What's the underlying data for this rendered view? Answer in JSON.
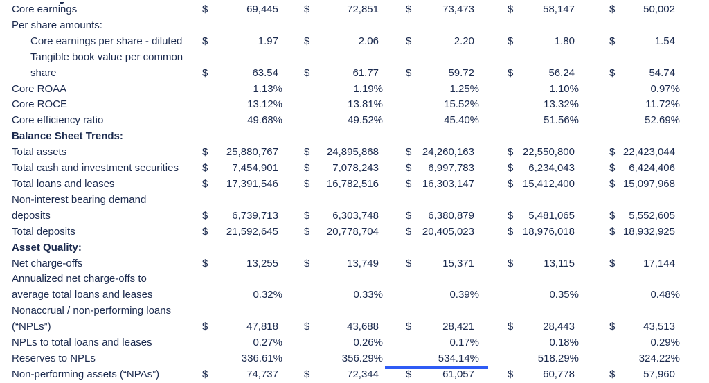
{
  "colors": {
    "text_navy": "#1b2a4e",
    "accent_blue_bar": "#2e5bf5"
  },
  "table": {
    "currency_symbol": "$",
    "rows": [
      {
        "label": "Core earnings",
        "type": "dollar",
        "values": [
          "69,445",
          "72,851",
          "73,473",
          "58,147",
          "50,002"
        ]
      },
      {
        "label": "Per share amounts:",
        "type": "heading",
        "bold": false
      },
      {
        "label": "Core earnings per share - diluted",
        "type": "dollar",
        "indent": true,
        "values": [
          "1.97",
          "2.06",
          "2.20",
          "1.80",
          "1.54"
        ]
      },
      {
        "label": "Tangible book value per common\nshare",
        "type": "dollar",
        "indent": true,
        "values": [
          "63.54",
          "61.77",
          "59.72",
          "56.24",
          "54.74"
        ]
      },
      {
        "label": "Core ROAA",
        "type": "percent",
        "values": [
          "1.13%",
          "1.19%",
          "1.25%",
          "1.10%",
          "0.97%"
        ]
      },
      {
        "label": "Core ROCE",
        "type": "percent",
        "values": [
          "13.12%",
          "13.81%",
          "15.52%",
          "13.32%",
          "11.72%"
        ]
      },
      {
        "label": "Core efficiency ratio",
        "type": "percent",
        "values": [
          "49.68%",
          "49.52%",
          "45.40%",
          "51.56%",
          "52.69%"
        ]
      },
      {
        "label": "Balance Sheet Trends:",
        "type": "heading",
        "bold": true
      },
      {
        "label": "Total assets",
        "type": "dollar",
        "values": [
          "25,880,767",
          "24,895,868",
          "24,260,163",
          "22,550,800",
          "22,423,044"
        ]
      },
      {
        "label": "Total cash and investment securities",
        "type": "dollar",
        "values": [
          "7,454,901",
          "7,078,243",
          "6,997,783",
          "6,234,043",
          "6,424,406"
        ]
      },
      {
        "label": "Total loans and leases",
        "type": "dollar",
        "values": [
          "17,391,546",
          "16,782,516",
          "16,303,147",
          "15,412,400",
          "15,097,968"
        ]
      },
      {
        "label": "Non-interest bearing demand\ndeposits",
        "type": "dollar",
        "values": [
          "6,739,713",
          "6,303,748",
          "6,380,879",
          "5,481,065",
          "5,552,605"
        ]
      },
      {
        "label": "Total deposits",
        "type": "dollar",
        "values": [
          "21,592,645",
          "20,778,704",
          "20,405,023",
          "18,976,018",
          "18,932,925"
        ]
      },
      {
        "label": "Asset Quality:",
        "type": "heading",
        "bold": true
      },
      {
        "label": "Net charge-offs",
        "type": "dollar",
        "values": [
          "13,255",
          "13,749",
          "15,371",
          "13,115",
          "17,144"
        ]
      },
      {
        "label": "Annualized net charge-offs to\naverage total loans and leases",
        "type": "percent",
        "values": [
          "0.32%",
          "0.33%",
          "0.39%",
          "0.35%",
          "0.48%"
        ]
      },
      {
        "label": "Nonaccrual / non-performing loans\n(“NPLs”)",
        "type": "dollar",
        "values": [
          "47,818",
          "43,688",
          "28,421",
          "28,443",
          "43,513"
        ]
      },
      {
        "label": "NPLs to total loans and leases",
        "type": "percent",
        "values": [
          "0.27%",
          "0.26%",
          "0.17%",
          "0.18%",
          "0.29%"
        ]
      },
      {
        "label": "Reserves to NPLs",
        "type": "percent",
        "values": [
          "336.61%",
          "356.29%",
          "534.14%",
          "518.29%",
          "324.22%"
        ]
      },
      {
        "label": "Non-performing assets (“NPAs”)",
        "type": "dollar",
        "values": [
          "74,737",
          "72,344",
          "61,057",
          "60,778",
          "57,960"
        ]
      }
    ]
  }
}
